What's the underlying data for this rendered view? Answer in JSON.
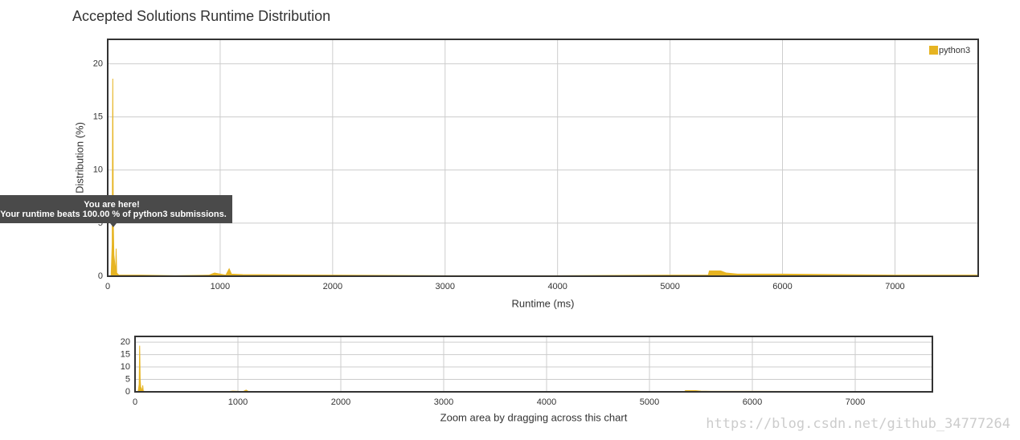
{
  "chart_data": [
    {
      "type": "area",
      "title": "Accepted Solutions Runtime Distribution",
      "x_label": "Runtime (ms)",
      "y_label": "Distribution (%)",
      "x": [
        0,
        30,
        40,
        45,
        50,
        55,
        60,
        70,
        75,
        80,
        90,
        100,
        150,
        300,
        600,
        900,
        950,
        1000,
        1050,
        1080,
        1100,
        1200,
        2000,
        3000,
        4000,
        5000,
        5340,
        5350,
        5450,
        5500,
        5600,
        6000,
        6500,
        7000,
        7740
      ],
      "series": [
        {
          "name": "python3",
          "color": "#e6b422",
          "values": [
            0,
            0,
            3,
            18.6,
            5,
            2,
            1.5,
            0.2,
            2.6,
            0.3,
            0.2,
            0.1,
            0.1,
            0.1,
            0.05,
            0.1,
            0.3,
            0.2,
            0.1,
            0.7,
            0.2,
            0.15,
            0.1,
            0.05,
            0.05,
            0.1,
            0.1,
            0.5,
            0.5,
            0.3,
            0.2,
            0.2,
            0.15,
            0.1,
            0.1
          ]
        }
      ],
      "xlim": [
        0,
        7740
      ],
      "ylim": [
        0,
        22.3
      ],
      "xticks": [
        0,
        1000,
        2000,
        3000,
        4000,
        5000,
        6000,
        7000
      ],
      "yticks": [
        0,
        5,
        10,
        15,
        20
      ],
      "grid": true,
      "legend": "top-right",
      "annotations": [
        "You are here!",
        "Your runtime beats 100.00 % of python3 submissions."
      ]
    },
    {
      "type": "area",
      "x_label": "Zoom area by dragging across this chart",
      "x": [
        0,
        30,
        40,
        45,
        50,
        55,
        60,
        70,
        75,
        80,
        90,
        100,
        150,
        300,
        600,
        900,
        950,
        1000,
        1050,
        1080,
        1100,
        1200,
        2000,
        3000,
        4000,
        5000,
        5340,
        5350,
        5450,
        5500,
        5600,
        6000,
        6500,
        7000,
        7740
      ],
      "series": [
        {
          "color": "#e6b422",
          "values": [
            0,
            0,
            3,
            18.6,
            5,
            2,
            1.5,
            0.2,
            2.6,
            0.3,
            0.2,
            0.1,
            0.1,
            0.1,
            0.05,
            0.1,
            0.3,
            0.2,
            0.1,
            0.7,
            0.2,
            0.15,
            0.1,
            0.05,
            0.05,
            0.1,
            0.1,
            0.5,
            0.5,
            0.3,
            0.2,
            0.2,
            0.15,
            0.1,
            0.1
          ]
        }
      ],
      "xlim": [
        0,
        7750
      ],
      "ylim": [
        0,
        22.3
      ],
      "xticks": [
        0,
        1000,
        2000,
        3000,
        4000,
        5000,
        6000,
        7000
      ],
      "yticks": [
        0,
        5,
        10,
        15,
        20
      ],
      "grid": true
    }
  ],
  "watermark": "https://blog.csdn.net/github_34777264"
}
